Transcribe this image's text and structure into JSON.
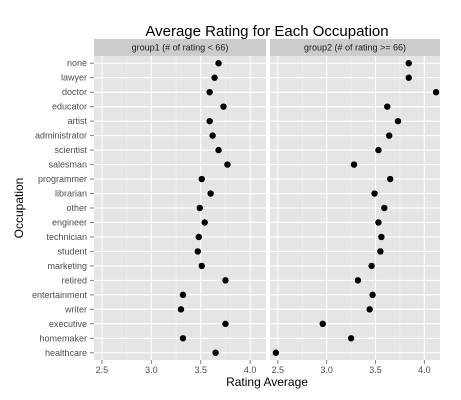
{
  "chart_data": {
    "type": "scatter",
    "title": "Average Rating for Each Occupation",
    "xlabel": "Rating Average",
    "ylabel": "Occupation",
    "xlim": [
      2.42,
      4.16
    ],
    "x_ticks": [
      "2.5",
      "3.0",
      "3.5",
      "4.0"
    ],
    "x_tick_values": [
      2.5,
      3.0,
      3.5,
      4.0
    ],
    "categories": [
      "none",
      "lawyer",
      "doctor",
      "educator",
      "artist",
      "administrator",
      "scientist",
      "salesman",
      "programmer",
      "librarian",
      "other",
      "engineer",
      "technician",
      "student",
      "marketing",
      "retired",
      "entertainment",
      "writer",
      "executive",
      "homemaker",
      "healthcare"
    ],
    "grid": true,
    "panels": [
      {
        "label": "group1 (# of rating < 66)",
        "values": [
          3.68,
          3.64,
          3.59,
          3.73,
          3.59,
          3.62,
          3.68,
          3.77,
          3.51,
          3.6,
          3.49,
          3.54,
          3.48,
          3.47,
          3.51,
          3.75,
          3.32,
          3.3,
          3.75,
          3.32,
          3.65
        ]
      },
      {
        "label": "group2 (# of rating >= 66)",
        "values": [
          3.84,
          3.84,
          4.12,
          3.62,
          3.73,
          3.64,
          3.53,
          3.28,
          3.65,
          3.49,
          3.59,
          3.53,
          3.56,
          3.55,
          3.46,
          3.32,
          3.47,
          3.44,
          2.96,
          3.25,
          2.48
        ]
      }
    ],
    "colors": {
      "panel_bg": "#e5e5e5",
      "strip_bg": "#cccccc",
      "grid_major": "#ffffff",
      "grid_minor": "#f2f2f2",
      "point": "#000000"
    }
  }
}
